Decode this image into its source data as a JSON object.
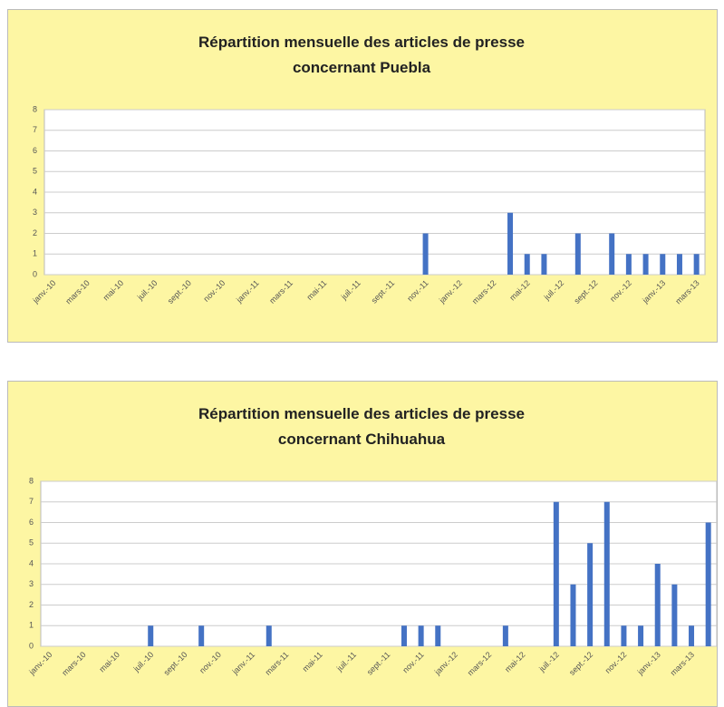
{
  "chart_data": [
    {
      "type": "bar",
      "title": "Répartition mensuelle des articles de presse concernant Puebla",
      "categories": [
        "janv.-10",
        null,
        "mars-10",
        null,
        "mai-10",
        null,
        "juil.-10",
        null,
        "sept.-10",
        null,
        "nov.-10",
        null,
        "janv.-11",
        null,
        "mars-11",
        null,
        "mai-11",
        null,
        "juil.-11",
        null,
        "sept.-11",
        null,
        "nov.-11",
        null,
        "janv.-12",
        null,
        "mars-12",
        null,
        "mai-12",
        null,
        "juil.-12",
        null,
        "sept.-12",
        null,
        "nov.-12",
        null,
        "janv.-13",
        null,
        "mars-13"
      ],
      "values": [
        0,
        0,
        0,
        0,
        0,
        0,
        0,
        0,
        0,
        0,
        0,
        0,
        0,
        0,
        0,
        0,
        0,
        0,
        0,
        0,
        0,
        0,
        2,
        0,
        0,
        0,
        0,
        3,
        1,
        1,
        0,
        2,
        0,
        2,
        1,
        1,
        1,
        1,
        1
      ],
      "color": "#4472c4",
      "ylim": [
        0,
        8
      ],
      "yticks": [
        0,
        1,
        2,
        3,
        4,
        5,
        6,
        7,
        8
      ],
      "grid": true
    },
    {
      "type": "bar",
      "title": "Répartition mensuelle des articles de presse concernant Chihuahua",
      "categories": [
        "janv.-10",
        null,
        "mars-10",
        null,
        "mai-10",
        null,
        "juil.-10",
        null,
        "sept.-10",
        null,
        "nov.-10",
        null,
        "janv.-11",
        null,
        "mars-11",
        null,
        "mai-11",
        null,
        "juil.-11",
        null,
        "sept.-11",
        null,
        "nov.-11",
        null,
        "janv.-12",
        null,
        "mars-12",
        null,
        "mai-12",
        null,
        "juil.-12",
        null,
        "sept.-12",
        null,
        "nov.-12",
        null,
        "janv.-13",
        null,
        "mars-13",
        null
      ],
      "values": [
        0,
        0,
        0,
        0,
        0,
        0,
        1,
        0,
        0,
        1,
        0,
        0,
        0,
        1,
        0,
        0,
        0,
        0,
        0,
        0,
        0,
        1,
        1,
        1,
        0,
        0,
        0,
        1,
        0,
        0,
        7,
        3,
        5,
        7,
        1,
        1,
        4,
        3,
        1,
        6
      ],
      "color": "#4472c4",
      "ylim": [
        0,
        8
      ],
      "yticks": [
        0,
        1,
        2,
        3,
        4,
        5,
        6,
        7,
        8
      ],
      "grid": true
    }
  ]
}
